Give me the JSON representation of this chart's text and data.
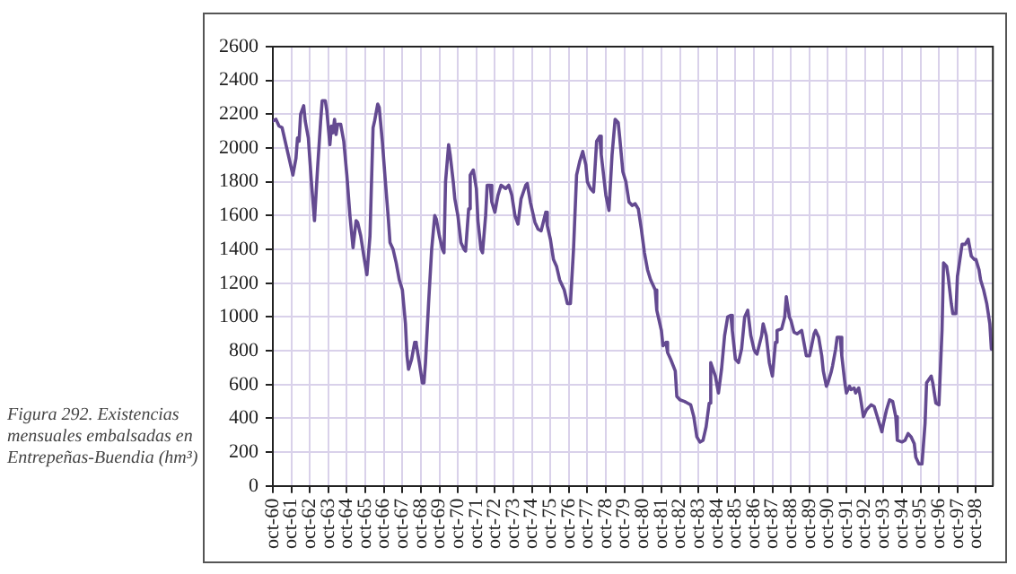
{
  "chart_data": {
    "type": "line",
    "annotations": [
      "Figura 292. Existencias mensuales embalsadas en Entrepeñas-Buendia (hm³)"
    ],
    "xlim": [
      "1960-10",
      "1999-09"
    ],
    "xticks": [
      {
        "value": "1960-10",
        "label": "oct-60"
      },
      {
        "value": "1961-10",
        "label": "oct-61"
      },
      {
        "value": "1962-10",
        "label": "oct-62"
      },
      {
        "value": "1963-10",
        "label": "oct-63"
      },
      {
        "value": "1964-10",
        "label": "oct-64"
      },
      {
        "value": "1965-10",
        "label": "oct-65"
      },
      {
        "value": "1966-10",
        "label": "oct-66"
      },
      {
        "value": "1967-10",
        "label": "oct-67"
      },
      {
        "value": "1968-10",
        "label": "oct-68"
      },
      {
        "value": "1969-10",
        "label": "oct-69"
      },
      {
        "value": "1970-10",
        "label": "oct-70"
      },
      {
        "value": "1971-10",
        "label": "oct-71"
      },
      {
        "value": "1972-10",
        "label": "oct-72"
      },
      {
        "value": "1973-10",
        "label": "oct-73"
      },
      {
        "value": "1974-10",
        "label": "oct-74"
      },
      {
        "value": "1975-10",
        "label": "oct-75"
      },
      {
        "value": "1976-10",
        "label": "oct-76"
      },
      {
        "value": "1977-10",
        "label": "oct-77"
      },
      {
        "value": "1978-10",
        "label": "oct-78"
      },
      {
        "value": "1979-10",
        "label": "oct-79"
      },
      {
        "value": "1980-10",
        "label": "oct-80"
      },
      {
        "value": "1981-10",
        "label": "oct-81"
      },
      {
        "value": "1982-10",
        "label": "oct-82"
      },
      {
        "value": "1983-10",
        "label": "oct-83"
      },
      {
        "value": "1984-10",
        "label": "oct-84"
      },
      {
        "value": "1985-10",
        "label": "oct-85"
      },
      {
        "value": "1986-10",
        "label": "oct-86"
      },
      {
        "value": "1987-10",
        "label": "oct-87"
      },
      {
        "value": "1988-10",
        "label": "oct-88"
      },
      {
        "value": "1989-10",
        "label": "oct-89"
      },
      {
        "value": "1990-10",
        "label": "oct-90"
      },
      {
        "value": "1991-10",
        "label": "oct-91"
      },
      {
        "value": "1992-10",
        "label": "oct-92"
      },
      {
        "value": "1993-10",
        "label": "oct-93"
      },
      {
        "value": "1994-10",
        "label": "oct-94"
      },
      {
        "value": "1995-10",
        "label": "oct-95"
      },
      {
        "value": "1996-10",
        "label": "oct-96"
      },
      {
        "value": "1997-10",
        "label": "oct-97"
      },
      {
        "value": "1998-10",
        "label": "oct-98"
      }
    ],
    "ylim": [
      0,
      2600
    ],
    "yticks": [
      0,
      200,
      400,
      600,
      800,
      1000,
      1200,
      1400,
      1600,
      1800,
      2000,
      2200,
      2400,
      2600
    ],
    "grid": true,
    "legend": false,
    "marker": "none",
    "line_style": "solid",
    "series": [
      {
        "color": "#644a91",
        "x": [
          "1960-10",
          "1960-12",
          "1961-02",
          "1961-04",
          "1961-06",
          "1961-09",
          "1961-11",
          "1962-01",
          "1962-02",
          "1962-03",
          "1962-04",
          "1962-06",
          "1962-07",
          "1962-09",
          "1962-11",
          "1963-01",
          "1963-03",
          "1963-05",
          "1963-06",
          "1963-08",
          "1963-09",
          "1963-11",
          "1963-12",
          "1964-01",
          "1964-02",
          "1964-03",
          "1964-04",
          "1964-06",
          "1964-08",
          "1964-10",
          "1964-12",
          "1965-02",
          "1965-04",
          "1965-05",
          "1965-07",
          "1965-09",
          "1965-11",
          "1966-01",
          "1966-03",
          "1966-04",
          "1966-06",
          "1966-07",
          "1966-09",
          "1966-11",
          "1967-01",
          "1967-02",
          "1967-04",
          "1967-06",
          "1967-08",
          "1967-10",
          "1967-12",
          "1968-01",
          "1968-02",
          "1968-04",
          "1968-06",
          "1968-07",
          "1968-09",
          "1968-11",
          "1968-12",
          "1969-01",
          "1969-03",
          "1969-05",
          "1969-07",
          "1969-08",
          "1969-10",
          "1969-12",
          "1970-01",
          "1970-02",
          "1970-04",
          "1970-05",
          "1970-07",
          "1970-08",
          "1970-10",
          "1970-12",
          "1971-02",
          "1971-03",
          "1971-05",
          "1971-06",
          "1971-08",
          "1971-10",
          "1971-11",
          "1972-01",
          "1972-02",
          "1972-04",
          "1972-05",
          "1972-07",
          "1972-08",
          "1972-10",
          "1972-12",
          "1973-02",
          "1973-05",
          "1973-07",
          "1973-09",
          "1973-11",
          "1974-01",
          "1974-03",
          "1974-06",
          "1974-07",
          "1974-09",
          "1974-12",
          "1975-02",
          "1975-04",
          "1975-07",
          "1975-08",
          "1975-10",
          "1975-12",
          "1976-02",
          "1976-04",
          "1976-07",
          "1976-09",
          "1976-11",
          "1977-01",
          "1977-03",
          "1977-05",
          "1977-07",
          "1977-09",
          "1977-10",
          "1977-12",
          "1978-02",
          "1978-04",
          "1978-06",
          "1978-07",
          "1978-10",
          "1978-12",
          "1979-02",
          "1979-04",
          "1979-06",
          "1979-07",
          "1979-09",
          "1979-11",
          "1980-01",
          "1980-03",
          "1980-05",
          "1980-07",
          "1980-09",
          "1980-11",
          "1981-01",
          "1981-03",
          "1981-06",
          "1981-07",
          "1981-10",
          "1981-11",
          "1982-01",
          "1982-02",
          "1982-04",
          "1982-07",
          "1982-08",
          "1982-10",
          "1983-01",
          "1983-03",
          "1983-05",
          "1983-07",
          "1983-09",
          "1983-11",
          "1984-01",
          "1984-03",
          "1984-05",
          "1984-06",
          "1984-09",
          "1984-11",
          "1985-01",
          "1985-03",
          "1985-05",
          "1985-07",
          "1985-08",
          "1985-10",
          "1985-12",
          "1986-02",
          "1986-04",
          "1986-06",
          "1986-08",
          "1986-10",
          "1986-11",
          "1986-12",
          "1987-03",
          "1987-04",
          "1987-06",
          "1987-08",
          "1987-10",
          "1987-12",
          "1988-01",
          "1988-04",
          "1988-06",
          "1988-07",
          "1988-09",
          "1988-10",
          "1988-12",
          "1989-02",
          "1989-05",
          "1989-06",
          "1989-08",
          "1989-10",
          "1989-11",
          "1990-01",
          "1990-02",
          "1990-04",
          "1990-06",
          "1990-07",
          "1990-09",
          "1990-10",
          "1990-12",
          "1991-01",
          "1991-03",
          "1991-04",
          "1991-06",
          "1991-07",
          "1991-09",
          "1991-10",
          "1991-12",
          "1992-01",
          "1992-03",
          "1992-04",
          "1992-06",
          "1992-07",
          "1992-09",
          "1992-11",
          "1993-02",
          "1993-04",
          "1993-06",
          "1993-09",
          "1993-10",
          "1993-12",
          "1994-02",
          "1994-04",
          "1994-06",
          "1994-07",
          "1994-10",
          "1994-12",
          "1995-02",
          "1995-04",
          "1995-06",
          "1995-07",
          "1995-09",
          "1995-11",
          "1996-01",
          "1996-02",
          "1996-05",
          "1996-06",
          "1996-08",
          "1996-10",
          "1996-12",
          "1997-01",
          "1997-03",
          "1997-04",
          "1997-06",
          "1997-07",
          "1997-09",
          "1997-10",
          "1998-01",
          "1998-03",
          "1998-05",
          "1998-07",
          "1998-09",
          "1998-10",
          "1998-12",
          "1999-01",
          "1999-03",
          "1999-05",
          "1999-07",
          "1999-08"
        ],
        "values": [
          2160,
          2170,
          2130,
          2120,
          2040,
          1920,
          1840,
          1940,
          2060,
          2040,
          2200,
          2250,
          2160,
          2060,
          1800,
          1570,
          1880,
          2160,
          2280,
          2280,
          2220,
          2020,
          2130,
          2090,
          2170,
          2080,
          2140,
          2140,
          2040,
          1840,
          1600,
          1410,
          1570,
          1560,
          1480,
          1360,
          1250,
          1480,
          2120,
          2160,
          2260,
          2240,
          2040,
          1800,
          1570,
          1440,
          1400,
          1320,
          1220,
          1160,
          960,
          770,
          690,
          750,
          850,
          840,
          730,
          610,
          610,
          730,
          1080,
          1400,
          1600,
          1580,
          1480,
          1400,
          1380,
          1800,
          2020,
          1960,
          1800,
          1700,
          1600,
          1440,
          1400,
          1390,
          1640,
          1840,
          1870,
          1760,
          1570,
          1400,
          1380,
          1600,
          1780,
          1780,
          1680,
          1620,
          1720,
          1780,
          1760,
          1780,
          1720,
          1600,
          1550,
          1700,
          1780,
          1790,
          1680,
          1560,
          1520,
          1510,
          1620,
          1540,
          1460,
          1340,
          1300,
          1220,
          1160,
          1080,
          1080,
          1400,
          1840,
          1920,
          1980,
          1900,
          1800,
          1760,
          1740,
          2040,
          2070,
          1960,
          1720,
          1630,
          1960,
          2170,
          2150,
          2060,
          1860,
          1800,
          1680,
          1660,
          1670,
          1640,
          1520,
          1380,
          1280,
          1220,
          1160,
          1040,
          920,
          830,
          850,
          790,
          750,
          680,
          530,
          510,
          500,
          490,
          480,
          410,
          290,
          260,
          270,
          350,
          490,
          730,
          650,
          550,
          690,
          890,
          1000,
          1010,
          920,
          750,
          730,
          810,
          1000,
          1040,
          890,
          810,
          790,
          780,
          890,
          960,
          890,
          730,
          650,
          850,
          920,
          930,
          1000,
          1120,
          1000,
          980,
          910,
          900,
          920,
          870,
          770,
          770,
          810,
          900,
          920,
          880,
          770,
          680,
          590,
          610,
          670,
          710,
          810,
          880,
          880,
          770,
          610,
          550,
          590,
          570,
          580,
          550,
          580,
          530,
          410,
          450,
          480,
          470,
          410,
          320,
          370,
          450,
          510,
          500,
          410,
          270,
          260,
          270,
          310,
          290,
          250,
          170,
          130,
          130,
          370,
          610,
          650,
          610,
          490,
          480,
          920,
          1320,
          1300,
          1240,
          1080,
          1020,
          1020,
          1240,
          1430,
          1430,
          1460,
          1360,
          1340,
          1340,
          1280,
          1220,
          1160,
          1080,
          960,
          810
        ]
      }
    ]
  }
}
